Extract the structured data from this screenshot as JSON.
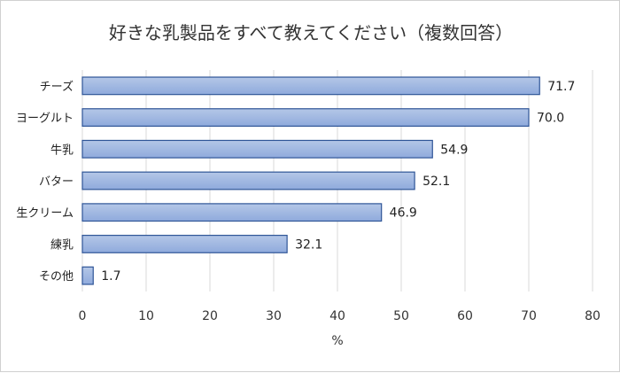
{
  "chart_data": {
    "type": "bar",
    "orientation": "horizontal",
    "title": "好きな乳製品をすべて教えてください（複数回答）",
    "xlabel": "%",
    "ylabel": "",
    "categories": [
      "チーズ",
      "ヨーグルト",
      "牛乳",
      "バター",
      "生クリーム",
      "練乳",
      "その他"
    ],
    "values": [
      71.7,
      70.0,
      54.9,
      52.1,
      46.9,
      32.1,
      1.7
    ],
    "value_labels": [
      "71.7",
      "70.0",
      "54.9",
      "52.1",
      "46.9",
      "32.1",
      "1.7"
    ],
    "xlim": [
      0,
      80
    ],
    "xticks": [
      0,
      10,
      20,
      30,
      40,
      50,
      60,
      70,
      80
    ],
    "grid": "vertical",
    "legend": "none",
    "bar_color": "#8faadc",
    "bar_gradient_top": "#b4c7e7",
    "bar_border_color": "#2f5597"
  }
}
